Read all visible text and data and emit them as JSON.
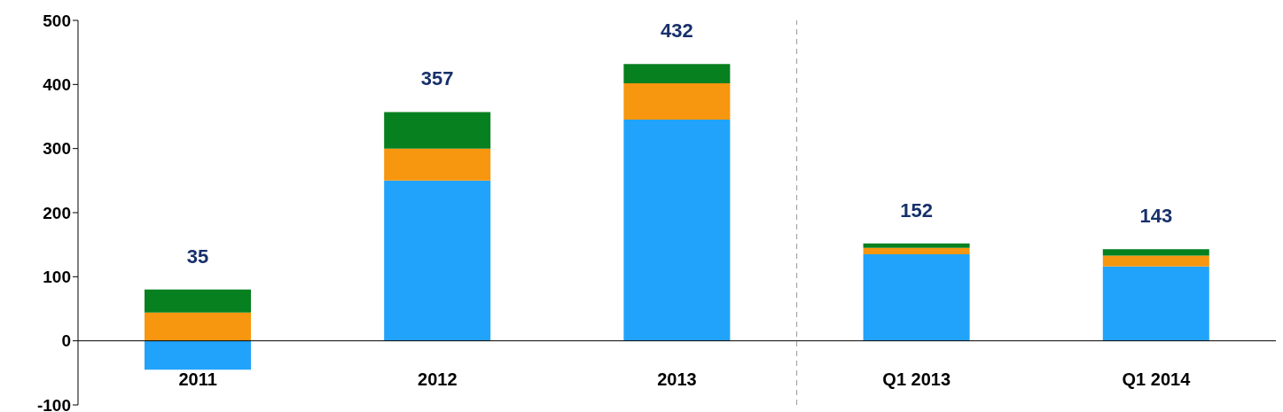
{
  "chart_data": {
    "type": "bar",
    "stacked": true,
    "categories": [
      "2011",
      "2012",
      "2013",
      "Q1 2013",
      "Q1 2014"
    ],
    "series": [
      {
        "color": "#21a3fb",
        "values": [
          -45,
          250,
          345,
          135,
          116
        ]
      },
      {
        "color": "#f7960f",
        "values": [
          44,
          50,
          57,
          10,
          17
        ]
      },
      {
        "color": "#07801f",
        "values": [
          36,
          57,
          30,
          7,
          10
        ]
      }
    ],
    "totals": [
      "35",
      "357",
      "432",
      "152",
      "143"
    ],
    "ylim": [
      -100,
      500
    ],
    "yticks": [
      -100,
      0,
      100,
      200,
      300,
      400,
      500
    ],
    "grid": false,
    "legend": false
  }
}
